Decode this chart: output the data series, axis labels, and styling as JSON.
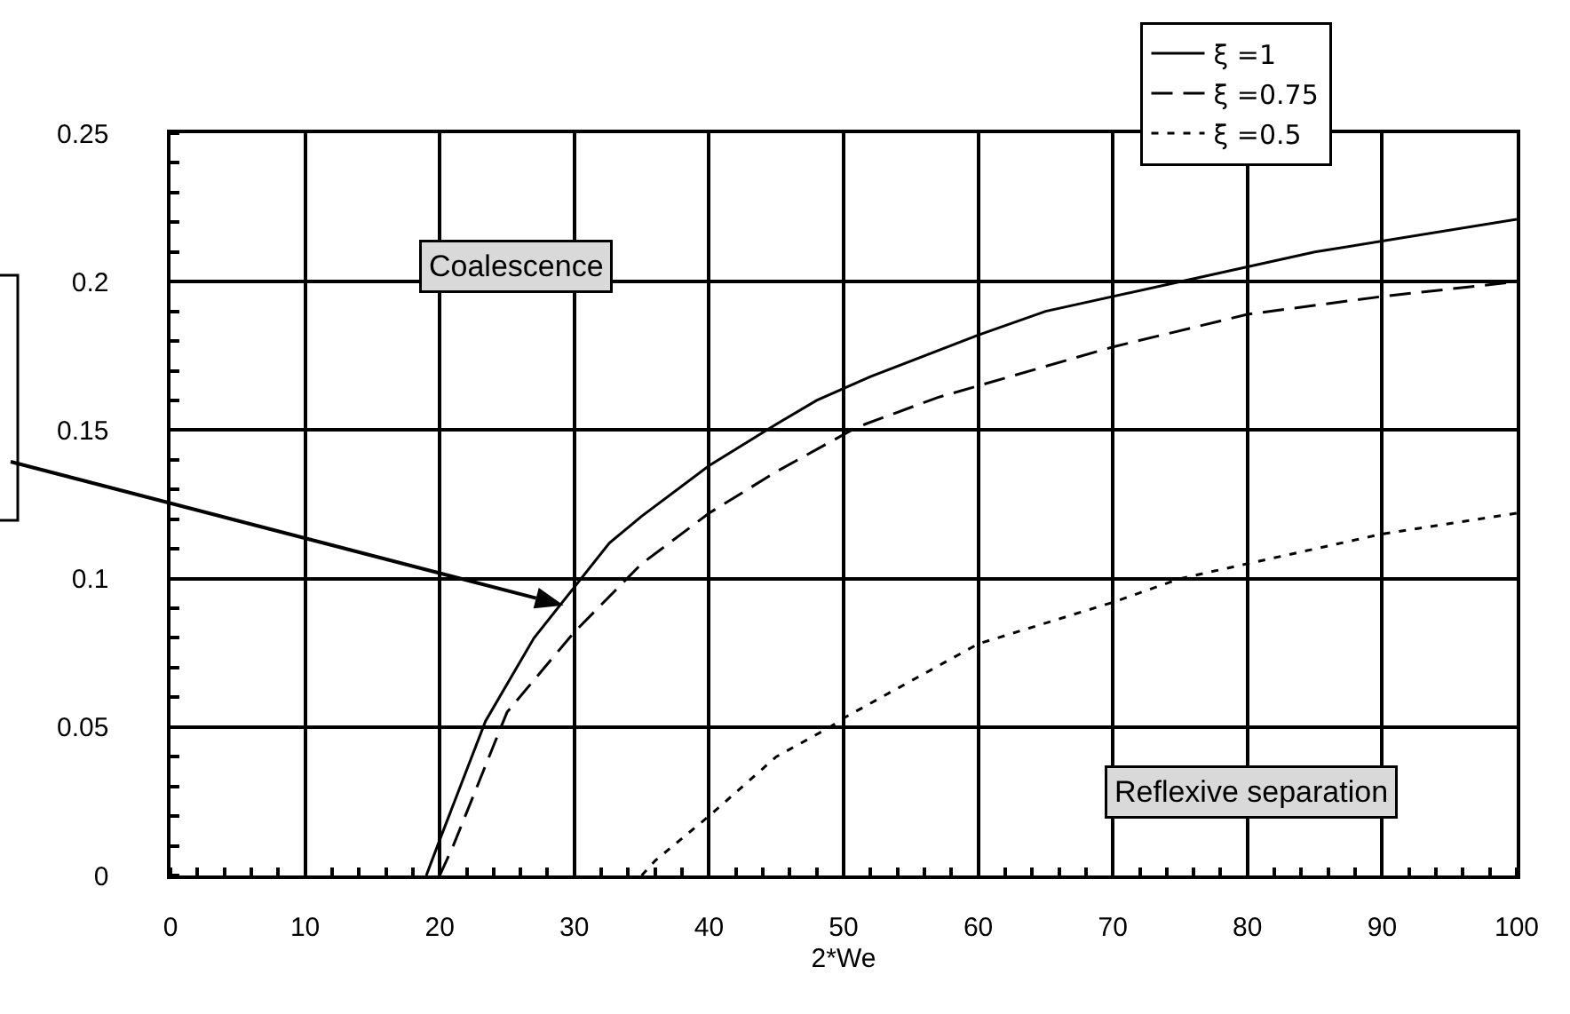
{
  "chart_data": {
    "type": "line",
    "xlabel": "2*We",
    "series": [
      {
        "name": "ξ =1",
        "color": "#000000",
        "line_style": "solid",
        "x": [
          19,
          20,
          23.4,
          27,
          32.6,
          35,
          40,
          45,
          48,
          52,
          60,
          65,
          75,
          85,
          100
        ],
        "values": [
          0,
          0.012,
          0.052,
          0.08,
          0.112,
          0.121,
          0.138,
          0.152,
          0.16,
          0.168,
          0.182,
          0.19,
          0.2,
          0.21,
          0.221
        ]
      },
      {
        "name": "ξ =0.75",
        "color": "#000000",
        "line_style": "dashed",
        "x": [
          20,
          21,
          25,
          30,
          35,
          40,
          45,
          51,
          57,
          70,
          80,
          90,
          100
        ],
        "values": [
          0,
          0.01,
          0.055,
          0.082,
          0.105,
          0.122,
          0.136,
          0.151,
          0.161,
          0.178,
          0.189,
          0.195,
          0.2
        ]
      },
      {
        "name": "ξ =0.5",
        "color": "#000000",
        "line_style": "dotted",
        "x": [
          35,
          36,
          40,
          45,
          49,
          50,
          60,
          70,
          75,
          80,
          90,
          100
        ],
        "values": [
          0,
          0.005,
          0.02,
          0.04,
          0.05,
          0.053,
          0.078,
          0.092,
          0.1,
          0.105,
          0.115,
          0.122
        ]
      }
    ],
    "annotations": [
      "Coalescence",
      "Reflexive separation"
    ],
    "xlim": [
      0,
      100
    ],
    "xticks": [
      0,
      10,
      20,
      30,
      40,
      50,
      60,
      70,
      80,
      90,
      100
    ],
    "ylim": [
      0,
      0.25
    ],
    "yticks": [
      0,
      0.05,
      0.1,
      0.15,
      0.2,
      0.25
    ],
    "grid": true,
    "legend": "top right",
    "marker": "none"
  }
}
